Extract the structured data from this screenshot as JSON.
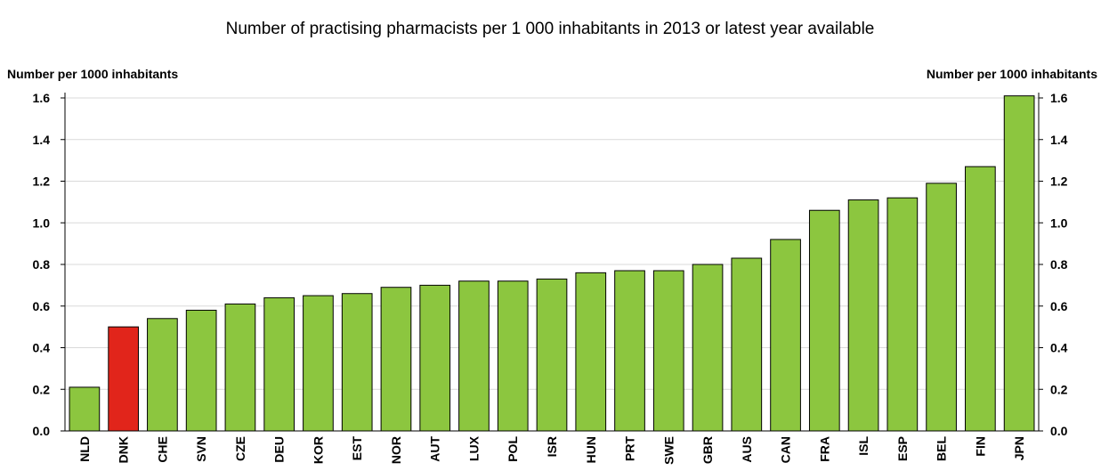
{
  "chart_data": {
    "type": "bar",
    "title": "Number of practising pharmacists per 1 000 inhabitants in 2013 or latest year available",
    "ylabel_left": "Number per 1000 inhabitants",
    "ylabel_right": "Number per 1000 inhabitants",
    "ylim": [
      0,
      1.6
    ],
    "yticks": [
      "0.0",
      "0.2",
      "0.4",
      "0.6",
      "0.8",
      "1.0",
      "1.2",
      "1.4",
      "1.6"
    ],
    "grid": true,
    "categories": [
      "NLD",
      "DNK",
      "CHE",
      "SVN",
      "CZE",
      "DEU",
      "KOR",
      "EST",
      "NOR",
      "AUT",
      "LUX",
      "POL",
      "ISR",
      "HUN",
      "PRT",
      "SWE",
      "GBR",
      "AUS",
      "CAN",
      "FRA",
      "ISL",
      "ESP",
      "BEL",
      "FIN",
      "JPN"
    ],
    "values": [
      0.21,
      0.5,
      0.54,
      0.58,
      0.61,
      0.64,
      0.65,
      0.66,
      0.69,
      0.7,
      0.72,
      0.72,
      0.73,
      0.76,
      0.77,
      0.77,
      0.8,
      0.83,
      0.92,
      1.06,
      1.11,
      1.12,
      1.19,
      1.27,
      1.61
    ],
    "highlight": "DNK",
    "colors": {
      "bar": "#8cc63f",
      "highlight": "#e1251b"
    }
  }
}
